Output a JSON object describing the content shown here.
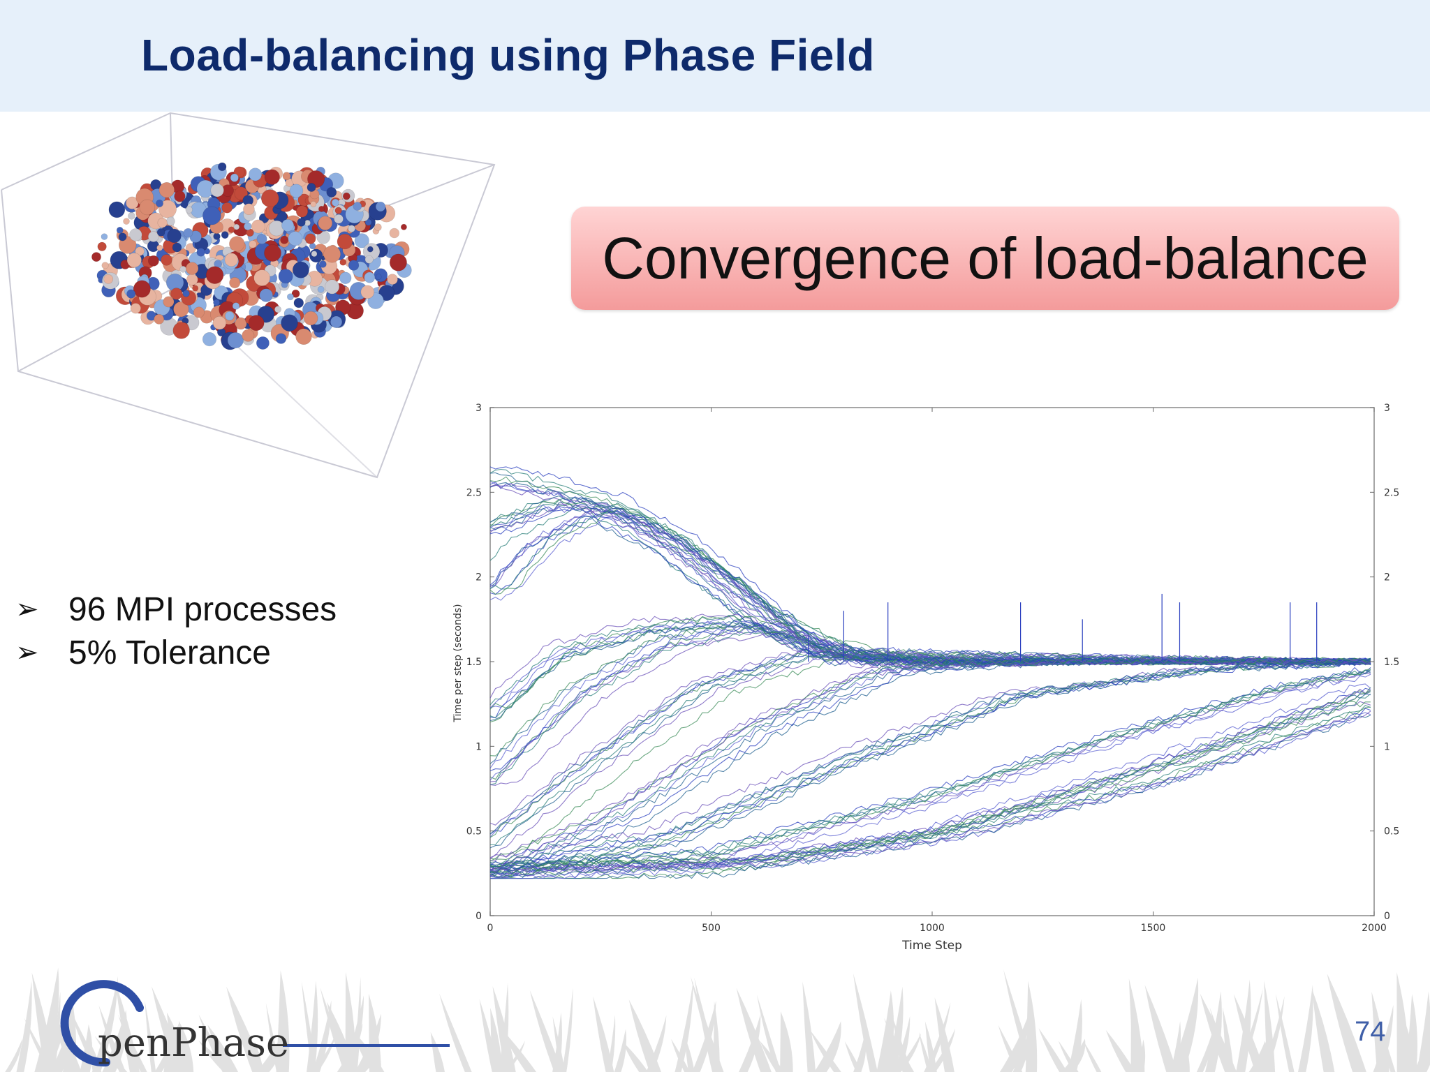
{
  "slide": {
    "title": "Load-balancing using Phase Field",
    "callout": "Convergence of load-balance",
    "page_number": "74",
    "logo_text": "penPhase"
  },
  "bullets": [
    {
      "marker": "➢",
      "text": "96 MPI processes"
    },
    {
      "marker": "➢",
      "text": "5% Tolerance"
    }
  ],
  "colors": {
    "header_bg": "#e6f0fa",
    "title": "#0e2a6b",
    "callout_top": "#ffd4d4",
    "callout_bottom": "#f49b9b",
    "series": [
      "#2a3fbf",
      "#2a7f7a",
      "#5a5fd0",
      "#3c8c5a",
      "#6a4fb8",
      "#1f5f8f"
    ]
  },
  "chart_data": {
    "type": "line",
    "title": "",
    "xlabel": "Time Step",
    "ylabel": "Time per step (seconds)",
    "xlim": [
      0,
      2000
    ],
    "ylim": [
      0,
      3
    ],
    "xticks": [
      "0",
      "500",
      "1000",
      "1500",
      "2000"
    ],
    "yticks": [
      "0",
      "0.5",
      "1",
      "1.5",
      "2",
      "2.5",
      "3"
    ],
    "grid": false,
    "legend": "none",
    "series_count": 96,
    "series_groups": [
      {
        "points": [
          [
            0,
            2.6
          ],
          [
            100,
            2.55
          ],
          [
            250,
            2.45
          ],
          [
            400,
            2.25
          ],
          [
            550,
            1.95
          ],
          [
            700,
            1.6
          ],
          [
            850,
            1.5
          ],
          [
            1000,
            1.5
          ],
          [
            1500,
            1.5
          ],
          [
            2000,
            1.5
          ]
        ]
      },
      {
        "points": [
          [
            0,
            2.3
          ],
          [
            150,
            2.45
          ],
          [
            300,
            2.38
          ],
          [
            450,
            2.15
          ],
          [
            600,
            1.85
          ],
          [
            750,
            1.55
          ],
          [
            1000,
            1.5
          ],
          [
            2000,
            1.5
          ]
        ]
      },
      {
        "points": [
          [
            0,
            1.9
          ],
          [
            100,
            2.2
          ],
          [
            250,
            2.4
          ],
          [
            400,
            2.2
          ],
          [
            600,
            1.8
          ],
          [
            800,
            1.52
          ],
          [
            2000,
            1.5
          ]
        ]
      },
      {
        "points": [
          [
            0,
            1.2
          ],
          [
            150,
            1.55
          ],
          [
            350,
            1.7
          ],
          [
            550,
            1.75
          ],
          [
            750,
            1.6
          ],
          [
            1000,
            1.5
          ],
          [
            2000,
            1.5
          ]
        ]
      },
      {
        "points": [
          [
            0,
            0.8
          ],
          [
            200,
            1.3
          ],
          [
            400,
            1.6
          ],
          [
            600,
            1.7
          ],
          [
            800,
            1.55
          ],
          [
            2000,
            1.5
          ]
        ]
      },
      {
        "points": [
          [
            0,
            0.4
          ],
          [
            250,
            0.9
          ],
          [
            500,
            1.35
          ],
          [
            750,
            1.55
          ],
          [
            1000,
            1.5
          ],
          [
            2000,
            1.5
          ]
        ]
      },
      {
        "points": [
          [
            0,
            0.25
          ],
          [
            300,
            0.6
          ],
          [
            600,
            1.1
          ],
          [
            900,
            1.45
          ],
          [
            1200,
            1.5
          ],
          [
            2000,
            1.5
          ]
        ]
      },
      {
        "points": [
          [
            0,
            0.25
          ],
          [
            400,
            0.45
          ],
          [
            800,
            0.9
          ],
          [
            1200,
            1.3
          ],
          [
            1600,
            1.45
          ],
          [
            2000,
            1.5
          ]
        ]
      },
      {
        "points": [
          [
            0,
            0.25
          ],
          [
            500,
            0.35
          ],
          [
            1000,
            0.7
          ],
          [
            1400,
            1.05
          ],
          [
            1800,
            1.35
          ],
          [
            2000,
            1.45
          ]
        ]
      },
      {
        "points": [
          [
            0,
            0.25
          ],
          [
            500,
            0.28
          ],
          [
            1000,
            0.5
          ],
          [
            1500,
            0.9
          ],
          [
            2000,
            1.35
          ]
        ]
      },
      {
        "points": [
          [
            0,
            0.25
          ],
          [
            600,
            0.3
          ],
          [
            1000,
            0.45
          ],
          [
            1500,
            0.8
          ],
          [
            2000,
            1.25
          ]
        ]
      }
    ],
    "spikes": [
      [
        720,
        1.65
      ],
      [
        800,
        1.8
      ],
      [
        900,
        1.85
      ],
      [
        1200,
        1.85
      ],
      [
        1340,
        1.75
      ],
      [
        1520,
        1.9
      ],
      [
        1560,
        1.85
      ],
      [
        1810,
        1.85
      ],
      [
        1870,
        1.85
      ]
    ]
  }
}
